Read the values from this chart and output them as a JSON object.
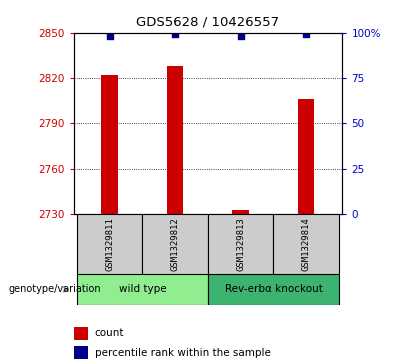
{
  "title": "GDS5628 / 10426557",
  "samples": [
    "GSM1329811",
    "GSM1329812",
    "GSM1329813",
    "GSM1329814"
  ],
  "counts": [
    2822,
    2828,
    2733,
    2806
  ],
  "percentiles": [
    98,
    99,
    98,
    99
  ],
  "ylim_left": [
    2730,
    2850
  ],
  "ylim_right": [
    0,
    100
  ],
  "yticks_left": [
    2730,
    2760,
    2790,
    2820,
    2850
  ],
  "yticks_right": [
    0,
    25,
    50,
    75,
    100
  ],
  "yticklabels_right": [
    "0",
    "25",
    "50",
    "75",
    "100%"
  ],
  "groups": [
    {
      "label": "wild type",
      "samples": [
        0,
        1
      ],
      "color": "#90EE90"
    },
    {
      "label": "Rev-erbα knockout",
      "samples": [
        2,
        3
      ],
      "color": "#3CB371"
    }
  ],
  "group_label": "genotype/variation",
  "bar_color": "#CC0000",
  "point_color": "#00008B",
  "bar_width": 0.25,
  "left_axis_color": "#CC0000",
  "right_axis_color": "#0000CC",
  "legend_items": [
    {
      "color": "#CC0000",
      "label": "count"
    },
    {
      "color": "#00008B",
      "label": "percentile rank within the sample"
    }
  ],
  "sample_box_color": "#CCCCCC",
  "figure_width": 4.2,
  "figure_height": 3.63,
  "dpi": 100
}
